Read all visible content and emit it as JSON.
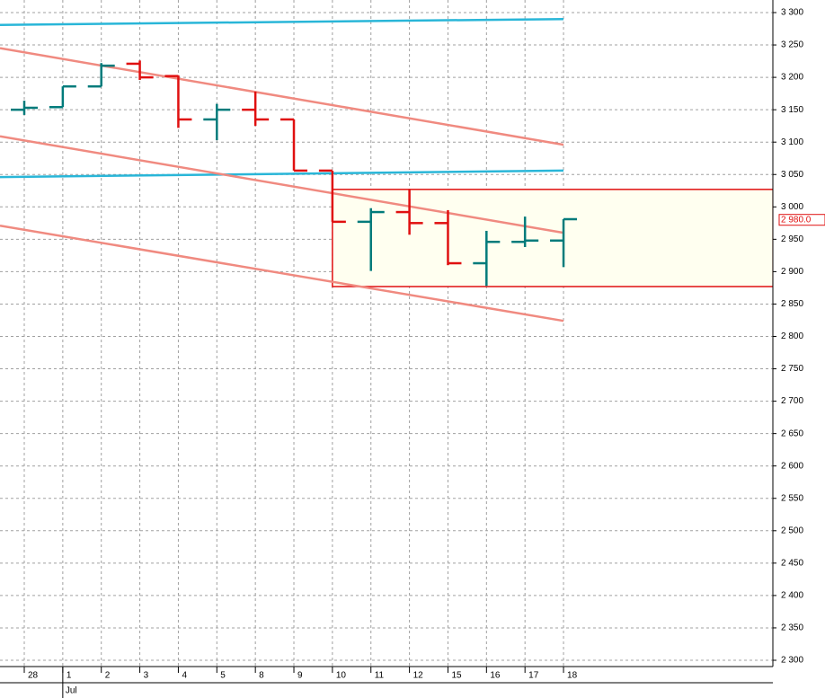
{
  "chart_data": {
    "type": "ohlc",
    "categories": [
      "28",
      "1",
      "2",
      "3",
      "4",
      "5",
      "8",
      "9",
      "10",
      "11",
      "12",
      "15",
      "16",
      "17",
      "18"
    ],
    "x_group_label": "Jul",
    "open": [
      3150,
      3154,
      3186,
      3221,
      3202,
      3135,
      3150,
      3135,
      3056,
      2977,
      2992,
      2975,
      2913,
      2946,
      2948
    ],
    "high": [
      3164,
      3186,
      3222,
      3226,
      3203,
      3159,
      3178,
      3135,
      3056,
      2998,
      3027,
      2995,
      2963,
      2985,
      2981
    ],
    "low": [
      3142,
      3154,
      3186,
      3196,
      3122,
      3103,
      3125,
      3056,
      2977,
      2901,
      2957,
      2910,
      2878,
      2938,
      2907
    ],
    "close": [
      3153,
      3186,
      3218,
      3200,
      3135,
      3150,
      3135,
      3056,
      2977,
      2992,
      2975,
      2913,
      2946,
      2948,
      2981
    ],
    "up_color": "#007b7b",
    "down_color": "#e01010",
    "lines": [
      {
        "color": "#29b6d8",
        "x": [
          -0.63,
          14
        ],
        "values": [
          3281,
          3290
        ]
      },
      {
        "color": "#29b6d8",
        "x": [
          -0.63,
          14
        ],
        "values": [
          3046,
          3056
        ]
      },
      {
        "color": "#f08a80",
        "x": [
          -0.63,
          14
        ],
        "values": [
          3245,
          3096
        ]
      },
      {
        "color": "#f08a80",
        "x": [
          -0.63,
          14
        ],
        "values": [
          3109,
          2960
        ]
      },
      {
        "color": "#f08a80",
        "x": [
          -0.63,
          14
        ],
        "values": [
          2971,
          2824
        ]
      }
    ],
    "box": {
      "x": [
        8,
        19.44
      ],
      "values": [
        2877,
        3027
      ],
      "color": "#e01010",
      "fill": "#fffff0"
    },
    "last_price": {
      "value": 2980,
      "label": "2 980.0"
    },
    "ylim": [
      2300,
      3300
    ],
    "yticks": [
      {
        "value": 3300,
        "label": "3 300"
      },
      {
        "value": 3250,
        "label": "3 250"
      },
      {
        "value": 3200,
        "label": "3 200"
      },
      {
        "value": 3150,
        "label": "3 150"
      },
      {
        "value": 3100,
        "label": "3 100"
      },
      {
        "value": 3050,
        "label": "3 050"
      },
      {
        "value": 3000,
        "label": "3 000"
      },
      {
        "value": 2950,
        "label": "2 950"
      },
      {
        "value": 2900,
        "label": "2 900"
      },
      {
        "value": 2850,
        "label": "2 850"
      },
      {
        "value": 2800,
        "label": "2 800"
      },
      {
        "value": 2750,
        "label": "2 750"
      },
      {
        "value": 2700,
        "label": "2 700"
      },
      {
        "value": 2650,
        "label": "2 650"
      },
      {
        "value": 2600,
        "label": "2 600"
      },
      {
        "value": 2550,
        "label": "2 550"
      },
      {
        "value": 2500,
        "label": "2 500"
      },
      {
        "value": 2450,
        "label": "2 450"
      },
      {
        "value": 2400,
        "label": "2 400"
      },
      {
        "value": 2350,
        "label": "2 350"
      },
      {
        "value": 2300,
        "label": "2 300"
      }
    ],
    "grid": true
  }
}
